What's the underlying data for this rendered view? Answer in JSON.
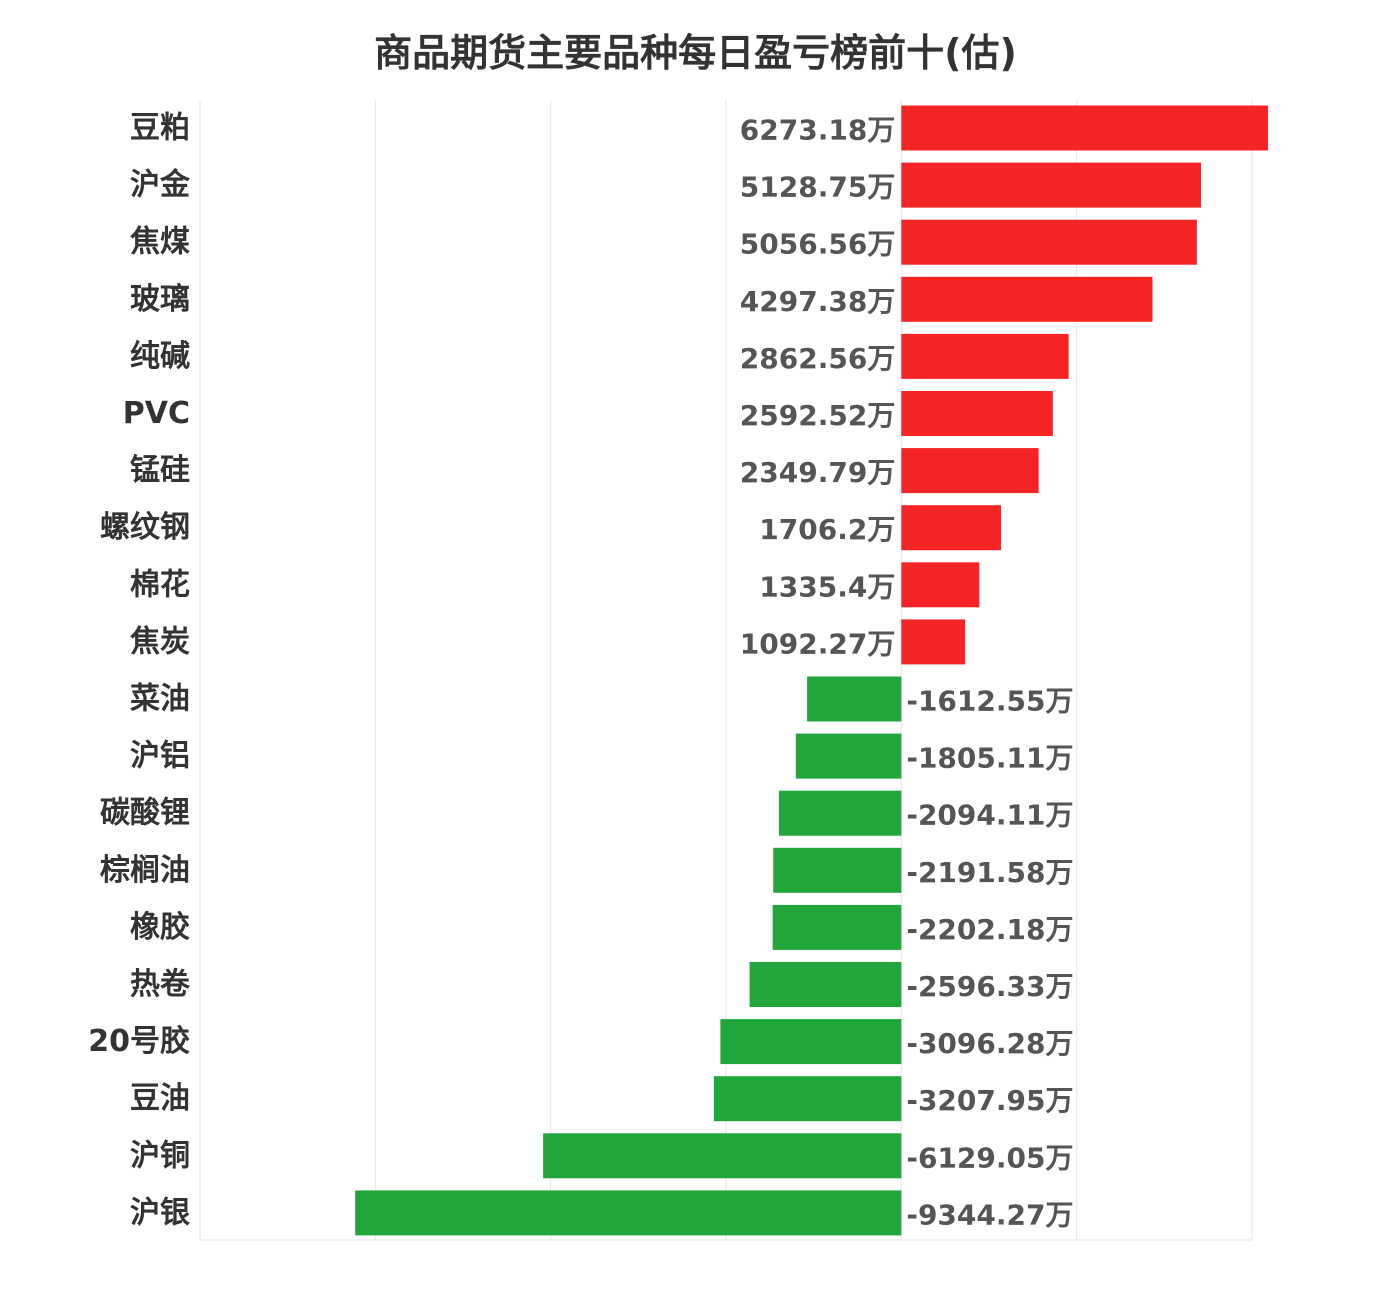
{
  "chart_data": {
    "type": "bar",
    "orientation": "horizontal",
    "title": "商品期货主要品种每日盈亏榜前十(估)",
    "unit_suffix": "万",
    "grid": true,
    "xlim": [
      -12000,
      6000
    ],
    "colors": {
      "positive": "#f52525",
      "negative": "#20a63a"
    },
    "categories": [
      "豆粕",
      "沪金",
      "焦煤",
      "玻璃",
      "纯碱",
      "PVC",
      "锰硅",
      "螺纹钢",
      "棉花",
      "焦炭",
      "菜油",
      "沪铝",
      "碳酸锂",
      "棕榈油",
      "橡胶",
      "热卷",
      "20号胶",
      "豆油",
      "沪铜",
      "沪银"
    ],
    "values": [
      6273.18,
      5128.75,
      5056.56,
      4297.38,
      2862.56,
      2592.52,
      2349.79,
      1706.2,
      1335.4,
      1092.27,
      -1612.55,
      -1805.11,
      -2094.11,
      -2191.58,
      -2202.18,
      -2596.33,
      -3096.28,
      -3207.95,
      -6129.05,
      -9344.27
    ],
    "value_labels": [
      "6273.18万",
      "5128.75万",
      "5056.56万",
      "4297.38万",
      "2862.56万",
      "2592.52万",
      "2349.79万",
      "1706.2万",
      "1335.4万",
      "1092.27万",
      "-1612.55万",
      "-1805.11万",
      "-2094.11万",
      "-2191.58万",
      "-2202.18万",
      "-2596.33万",
      "-3096.28万",
      "-3207.95万",
      "-6129.05万",
      "-9344.27万"
    ]
  }
}
